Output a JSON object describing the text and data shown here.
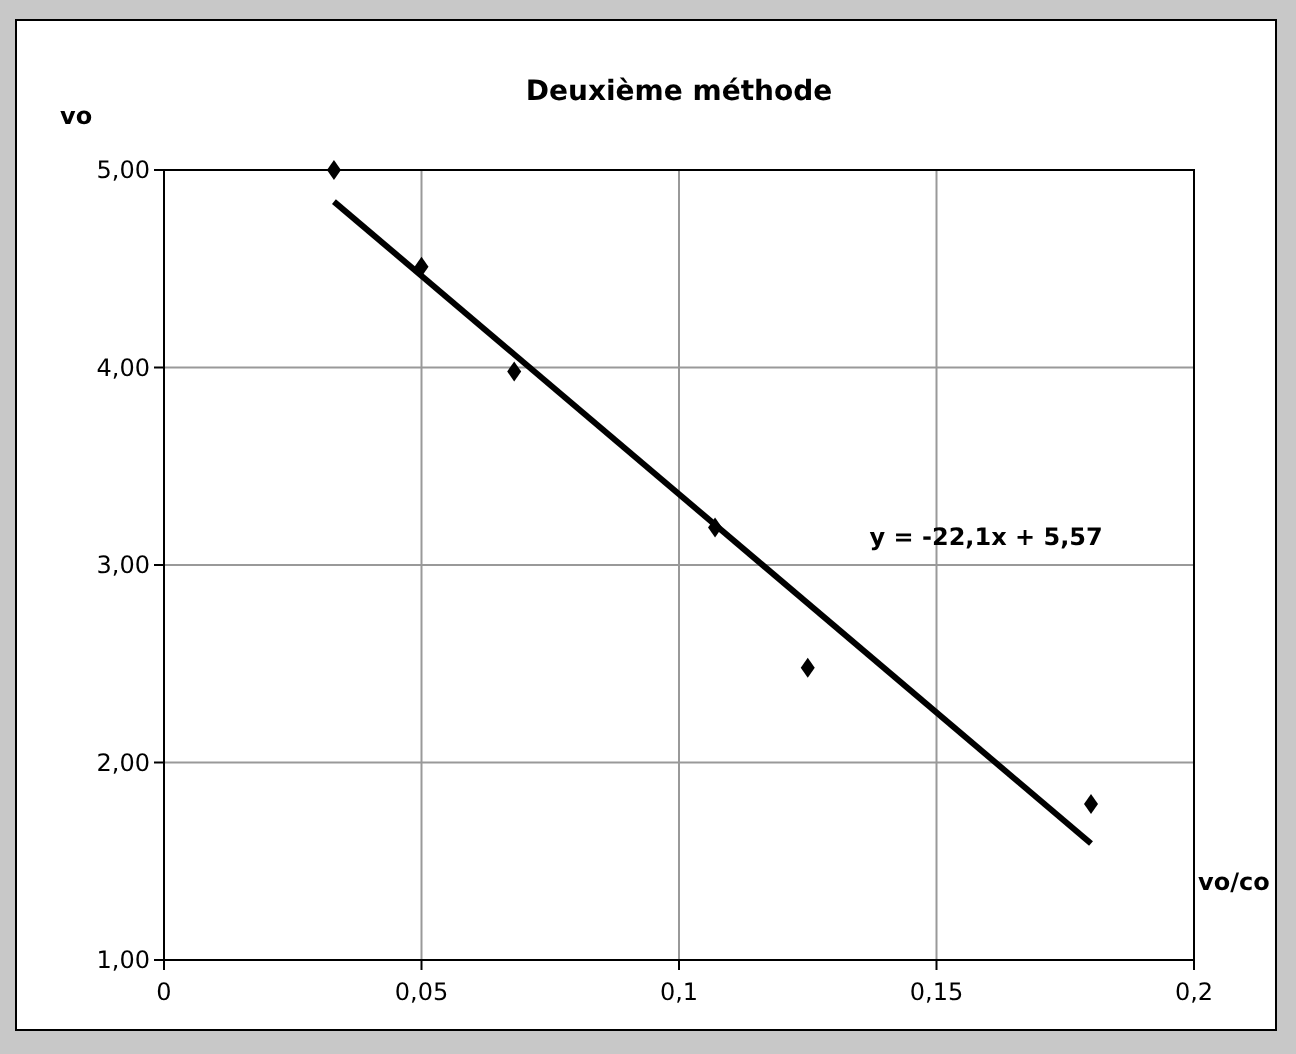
{
  "chart_data": {
    "type": "scatter",
    "title": "Deuxième méthode",
    "xlabel": "vo/co",
    "ylabel": "vo",
    "marker": "diamond",
    "grid": true,
    "xlim": [
      0,
      0.2
    ],
    "xticks": [
      0,
      {
        "value": 0.05,
        "label": "0,05"
      },
      {
        "value": 0.1,
        "label": "0,1"
      },
      {
        "value": 0.15,
        "label": "0,15"
      },
      {
        "value": 0.2,
        "label": "0,2"
      }
    ],
    "ylim": [
      1,
      5
    ],
    "yticks": [
      {
        "value": 1,
        "label": "1,00"
      },
      {
        "value": 2,
        "label": "2,00"
      },
      {
        "value": 3,
        "label": "3,00"
      },
      {
        "value": 4,
        "label": "4,00"
      },
      {
        "value": 5,
        "label": "5,00"
      }
    ],
    "annotations": [
      "y = -22,1x + 5,57"
    ],
    "series": [
      {
        "color": "#000000",
        "x": [
          0.033,
          0.05,
          0.068,
          0.107,
          0.125,
          0.18
        ],
        "values": [
          5.0,
          4.51,
          3.98,
          3.19,
          2.48,
          1.79
        ]
      },
      {
        "type": "line",
        "color": "#000000",
        "marker": "none",
        "x": [
          0.033,
          0.18
        ],
        "values": [
          4.84,
          1.59
        ]
      }
    ]
  }
}
